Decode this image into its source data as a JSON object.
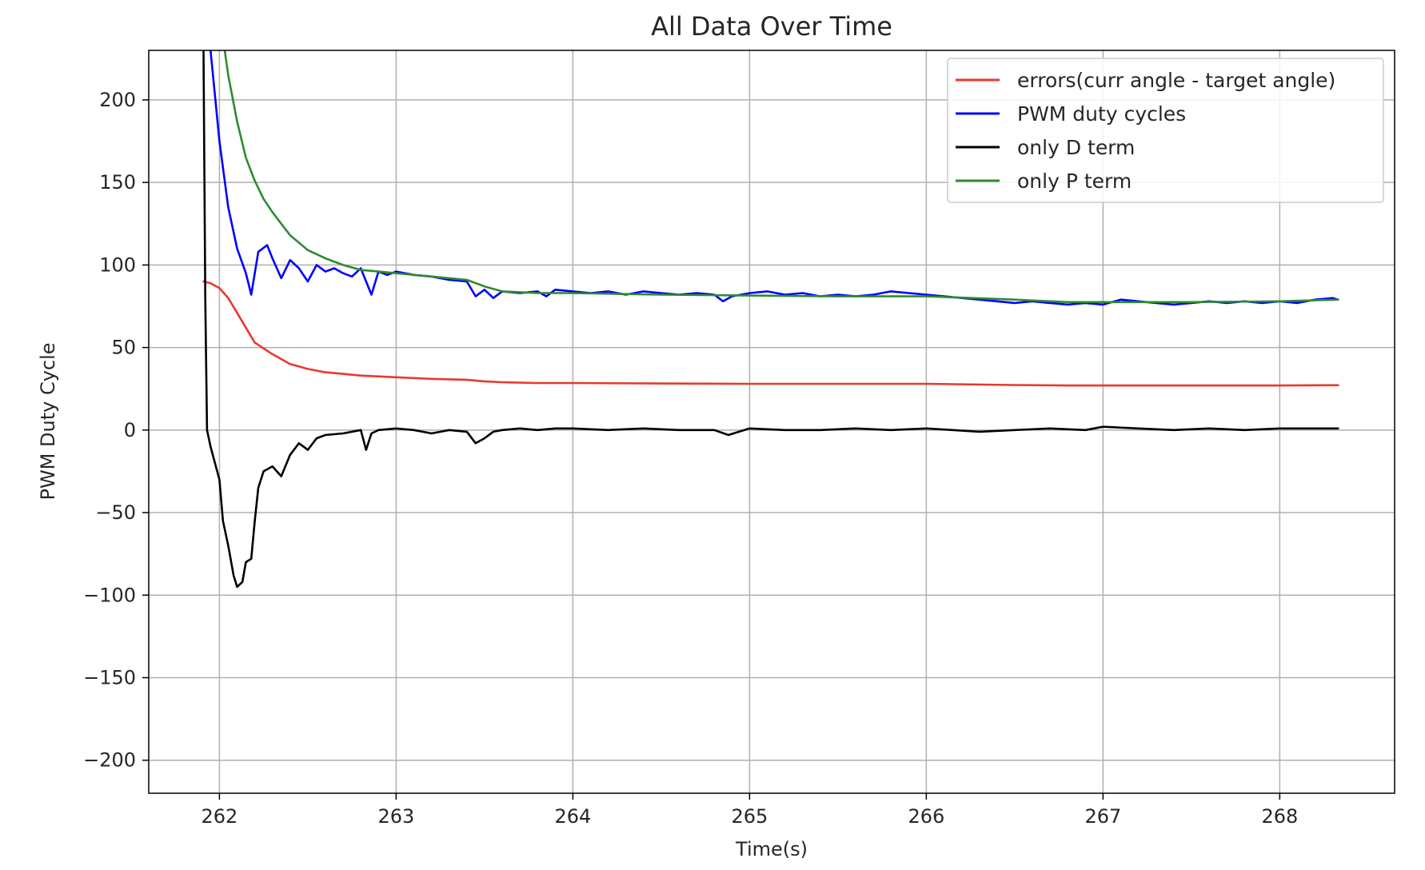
{
  "chart_data": {
    "type": "line",
    "title": "All Data Over Time",
    "xlabel": "Time(s)",
    "ylabel": "PWM Duty Cycle",
    "xlim": [
      261.6,
      268.65
    ],
    "ylim": [
      -220,
      230
    ],
    "xticks": [
      262,
      263,
      264,
      265,
      266,
      267,
      268
    ],
    "yticks": [
      -200,
      -150,
      -100,
      -50,
      0,
      50,
      100,
      150,
      200
    ],
    "ytick_labels": [
      "−200",
      "−150",
      "−100",
      "−50",
      "0",
      "50",
      "100",
      "150",
      "200"
    ],
    "grid": true,
    "legend_position": "top-right",
    "series": [
      {
        "name": "errors(curr angle - target angle)",
        "color": "#e8392b",
        "x": [
          261.91,
          261.95,
          262.0,
          262.05,
          262.1,
          262.15,
          262.2,
          262.3,
          262.4,
          262.5,
          262.6,
          262.7,
          262.8,
          263.0,
          263.2,
          263.4,
          263.5,
          263.6,
          263.8,
          264.0,
          264.5,
          265.0,
          265.5,
          266.0,
          266.5,
          266.8,
          267.0,
          267.5,
          268.0,
          268.33
        ],
        "y": [
          90,
          89,
          86,
          80,
          71,
          62,
          53,
          46,
          40,
          37,
          35,
          34,
          33,
          32,
          31,
          30.5,
          29.5,
          29,
          28.5,
          28.5,
          28.2,
          28,
          28,
          28,
          27.3,
          27,
          27,
          27,
          27,
          27.2
        ]
      },
      {
        "name": "PWM duty cycles",
        "color": "#0000ff",
        "x": [
          261.95,
          262.0,
          262.05,
          262.1,
          262.15,
          262.18,
          262.22,
          262.27,
          262.3,
          262.35,
          262.4,
          262.45,
          262.5,
          262.55,
          262.6,
          262.65,
          262.7,
          262.75,
          262.8,
          262.83,
          262.86,
          262.9,
          262.95,
          263.0,
          263.1,
          263.2,
          263.3,
          263.4,
          263.45,
          263.5,
          263.55,
          263.6,
          263.7,
          263.8,
          263.85,
          263.9,
          264.0,
          264.1,
          264.2,
          264.3,
          264.4,
          264.5,
          264.6,
          264.7,
          264.8,
          264.85,
          264.9,
          265.0,
          265.1,
          265.2,
          265.3,
          265.4,
          265.5,
          265.6,
          265.7,
          265.8,
          265.9,
          266.0,
          266.1,
          266.2,
          266.3,
          266.4,
          266.5,
          266.6,
          266.7,
          266.8,
          266.9,
          267.0,
          267.1,
          267.2,
          267.3,
          267.4,
          267.5,
          267.6,
          267.7,
          267.8,
          267.9,
          268.0,
          268.1,
          268.2,
          268.3,
          268.33
        ],
        "y": [
          230,
          175,
          135,
          110,
          95,
          82,
          108,
          112,
          104,
          92,
          103,
          98,
          90,
          100,
          96,
          98,
          95,
          93,
          98,
          90,
          82,
          96,
          94,
          96,
          94,
          93,
          91,
          90,
          81,
          85,
          80,
          84,
          83,
          84,
          81,
          85,
          84,
          83,
          84,
          82,
          84,
          83,
          82,
          83,
          82,
          78,
          81,
          83,
          84,
          82,
          83,
          81,
          82,
          81,
          82,
          84,
          83,
          82,
          81,
          80,
          79,
          78,
          77,
          78,
          77,
          76,
          77,
          76,
          79,
          78,
          77,
          76,
          77,
          78,
          77,
          78,
          77,
          78,
          77,
          79,
          80,
          79
        ]
      },
      {
        "name": "only D term",
        "color": "#000000",
        "x": [
          261.91,
          261.92,
          261.93,
          261.95,
          262.0,
          262.02,
          262.05,
          262.08,
          262.1,
          262.13,
          262.15,
          262.18,
          262.2,
          262.22,
          262.25,
          262.3,
          262.35,
          262.4,
          262.45,
          262.5,
          262.55,
          262.6,
          262.7,
          262.8,
          262.83,
          262.86,
          262.9,
          263.0,
          263.1,
          263.2,
          263.3,
          263.4,
          263.45,
          263.5,
          263.55,
          263.6,
          263.7,
          263.8,
          263.9,
          264.0,
          264.2,
          264.4,
          264.6,
          264.8,
          264.88,
          265.0,
          265.2,
          265.4,
          265.6,
          265.8,
          266.0,
          266.15,
          266.3,
          266.5,
          266.7,
          266.9,
          267.0,
          267.2,
          267.4,
          267.6,
          267.8,
          268.0,
          268.2,
          268.33
        ],
        "y": [
          230,
          80,
          0,
          -10,
          -30,
          -55,
          -70,
          -88,
          -95,
          -92,
          -80,
          -78,
          -55,
          -35,
          -25,
          -22,
          -28,
          -15,
          -8,
          -12,
          -5,
          -3,
          -2,
          0,
          -12,
          -2,
          0,
          1,
          0,
          -2,
          0,
          -1,
          -8,
          -5,
          -1,
          0,
          1,
          0,
          1,
          1,
          0,
          1,
          0,
          0,
          -3,
          1,
          0,
          0,
          1,
          0,
          1,
          0,
          -1,
          0,
          1,
          0,
          2,
          1,
          0,
          1,
          0,
          1,
          1,
          1
        ]
      },
      {
        "name": "only P term",
        "color": "#2e8b2e",
        "x": [
          262.03,
          262.05,
          262.1,
          262.15,
          262.2,
          262.25,
          262.3,
          262.35,
          262.4,
          262.5,
          262.6,
          262.7,
          262.8,
          262.9,
          263.0,
          263.2,
          263.4,
          263.5,
          263.6,
          263.8,
          264.0,
          264.5,
          265.0,
          265.5,
          266.0,
          266.5,
          266.8,
          267.0,
          267.5,
          268.0,
          268.33
        ],
        "y": [
          230,
          215,
          187,
          165,
          151,
          140,
          132,
          125,
          118,
          109,
          104,
          100,
          97,
          96,
          95,
          93,
          91,
          87,
          84,
          83,
          83,
          82,
          81.5,
          81,
          81,
          79,
          77.5,
          77.5,
          77.5,
          78,
          79
        ]
      }
    ]
  }
}
